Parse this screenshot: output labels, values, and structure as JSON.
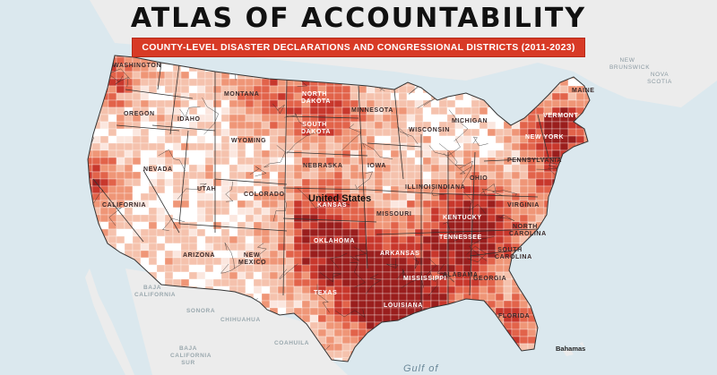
{
  "title": "ATLAS OF ACCOUNTABILITY",
  "subtitle": "COUNTY-LEVEL DISASTER DECLARATIONS AND CONGRESSIONAL DISTRICTS (2011-2023)",
  "country_label": "United States",
  "water_label": "Gulf of",
  "place_label": "Bahamas",
  "state_labels": [
    "WASHINGTON",
    "OREGON",
    "IDAHO",
    "MONTANA",
    "WYOMING",
    "NEVADA",
    "UTAH",
    "COLORADO",
    "CALIFORNIA",
    "ARIZONA",
    "NEW MEXICO",
    "NORTH DAKOTA",
    "SOUTH DAKOTA",
    "NEBRASKA",
    "KANSAS",
    "OKLAHOMA",
    "TEXAS",
    "MINNESOTA",
    "IOWA",
    "MISSOURI",
    "ARKANSAS",
    "LOUISIANA",
    "WISCONSIN",
    "MICHIGAN",
    "ILLINOIS",
    "INDIANA",
    "OHIO",
    "KENTUCKY",
    "TENNESSEE",
    "MISSISSIPPI",
    "ALABAMA",
    "GEORGIA",
    "FLORIDA",
    "SOUTH CAROLINA",
    "NORTH CAROLINA",
    "VIRGINIA",
    "PENNSYLVANIA",
    "NEW YORK",
    "MAINE",
    "VERMONT"
  ],
  "region_labels": [
    "BAJA CALIFORNIA",
    "BAJA CALIFORNIA SUR",
    "SONORA",
    "CHIHUAHUA",
    "COAHUILA",
    "NEW BRUNSWICK",
    "NOVA SCOTIA"
  ],
  "colors": {
    "water": "#dbe8ee",
    "land_outside": "#ebebeb",
    "scale": [
      "#fbe7df",
      "#f5c2ad",
      "#ef9677",
      "#e2634a",
      "#c8372c",
      "#9a1e1d"
    ],
    "title_bar": "#d83a26",
    "state_border": "#333333"
  }
}
